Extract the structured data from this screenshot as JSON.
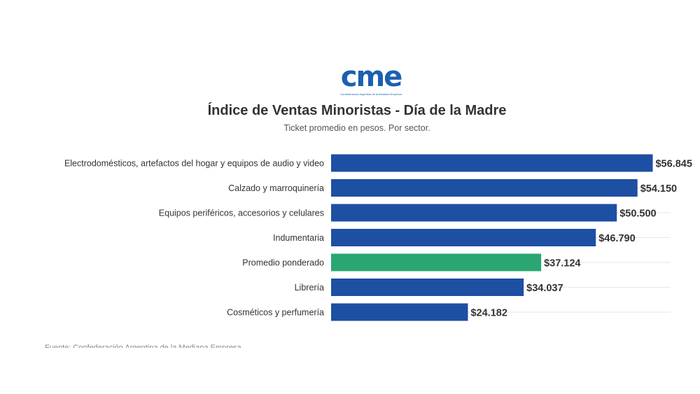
{
  "logo": {
    "text": "cme",
    "subtext": "Confederación Argentina de la Mediana Empresa"
  },
  "source_text": "Fuente: Confederación Argentina de la Mediana Empresa",
  "chart_data": {
    "type": "bar",
    "orientation": "horizontal",
    "title": "Índice de Ventas Minoristas - Día de la Madre",
    "subtitle": "Ticket promedio en pesos. Por sector.",
    "xlabel": "",
    "ylabel": "",
    "xlim": [
      0,
      60000
    ],
    "grid": true,
    "categories": [
      "Electrodomésticos, artefactos del hogar y equipos de audio y video",
      "Calzado y marroquinería",
      "Equipos periféricos, accesorios y celulares",
      "Indumentaria",
      "Promedio ponderado",
      "Librería",
      "Cosméticos y perfumería"
    ],
    "values": [
      56845,
      54150,
      50500,
      46790,
      37124,
      34037,
      24182
    ],
    "value_labels": [
      "$56.845",
      "$54.150",
      "$50.500",
      "$46.790",
      "$37.124",
      "$34.037",
      "$24.182"
    ],
    "highlight_index": 4,
    "colors": {
      "bar": "#1d4fa3",
      "highlight": "#2aa673",
      "grid": "#e6e6e6"
    }
  }
}
